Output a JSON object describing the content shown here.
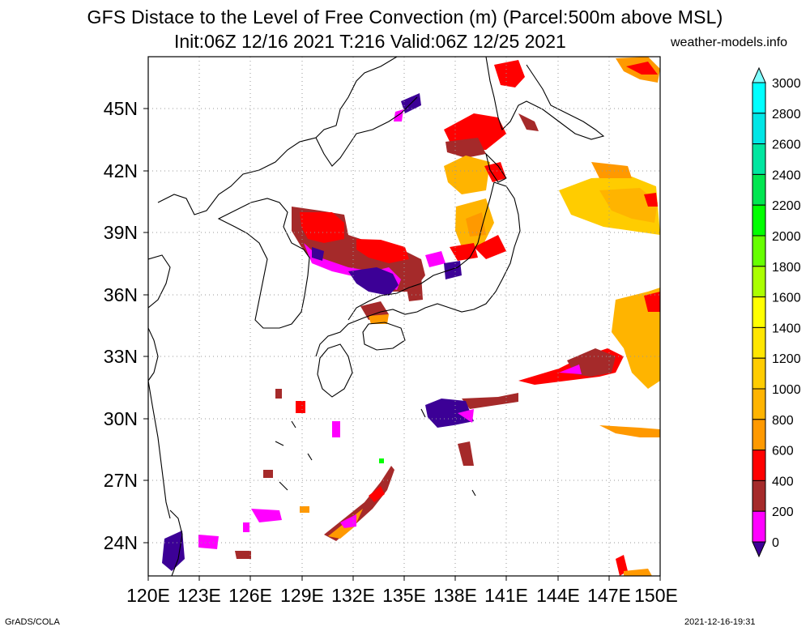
{
  "title": {
    "line1": "GFS Distace to the Level of Free Convection (m) (Parcel:500m above MSL)",
    "line2": "Init:06Z 12/16 2021 T:216 Valid:06Z 12/25 2021",
    "site": "weather-models.info"
  },
  "footer": {
    "left": "GrADS/COLA",
    "right": "2021-12-16-19:31"
  },
  "map": {
    "lon_range": [
      120,
      150
    ],
    "lat_range": [
      22.5,
      47.5
    ],
    "lon_ticks": [
      "120E",
      "123E",
      "126E",
      "129E",
      "132E",
      "135E",
      "138E",
      "141E",
      "144E",
      "147E",
      "150E"
    ],
    "lat_ticks": [
      "24N",
      "27N",
      "30N",
      "33N",
      "36N",
      "39N",
      "42N",
      "45N"
    ],
    "grid": true
  },
  "colorbar": {
    "labels": [
      "0",
      "200",
      "400",
      "600",
      "800",
      "1000",
      "1200",
      "1400",
      "1600",
      "1800",
      "2000",
      "2200",
      "2400",
      "2600",
      "2800",
      "3000"
    ],
    "colors": [
      "#3c0096",
      "#ff00ff",
      "#a52a2a",
      "#ff0000",
      "#ff9900",
      "#ffb400",
      "#ffcc00",
      "#ffe600",
      "#ffff00",
      "#aaff00",
      "#66ff00",
      "#00ff00",
      "#00e650",
      "#00e6a0",
      "#00e6e6",
      "#00ffff"
    ],
    "arrow_top_color": "#7fffff",
    "arrow_bottom_color": "#3c0096"
  }
}
